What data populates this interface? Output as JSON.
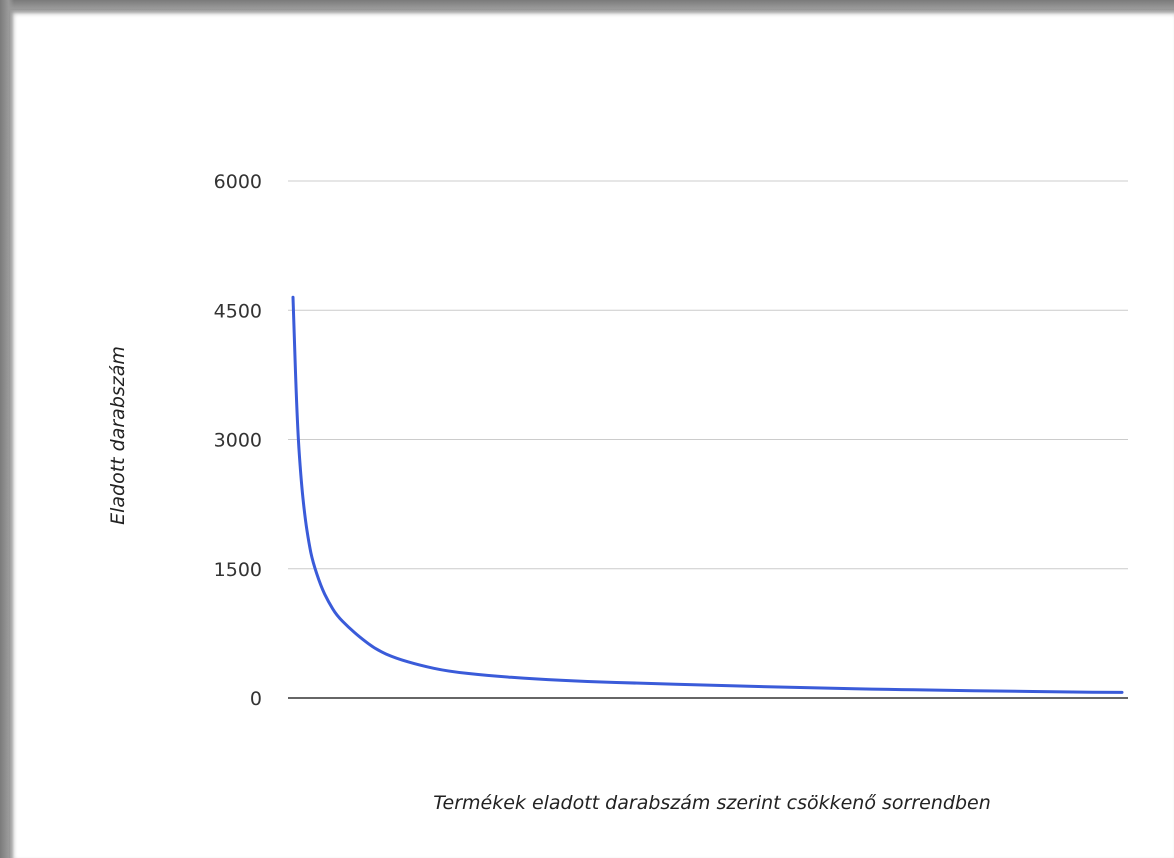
{
  "chart_data": {
    "type": "line",
    "title": "",
    "xlabel": "Termékek eladott darabszám szerint csökkenő sorrendben",
    "ylabel": "Eladott darabszám",
    "ylim": [
      0,
      6000
    ],
    "yticks": [
      "0",
      "1500",
      "3000",
      "4500",
      "6000"
    ],
    "grid": true,
    "legend": "none",
    "x_ticks_shown": false,
    "series": [
      {
        "color": "#3a5bd9",
        "x": [
          1,
          2,
          3,
          4,
          5,
          6,
          8,
          10,
          12,
          15,
          18,
          22,
          27,
          33,
          40,
          50,
          62,
          75,
          90,
          105,
          120,
          135,
          150,
          165,
          180,
          195,
          210
        ],
        "y": [
          4650,
          3250,
          2550,
          2100,
          1800,
          1580,
          1300,
          1110,
          960,
          820,
          700,
          560,
          460,
          380,
          310,
          260,
          220,
          190,
          170,
          150,
          130,
          115,
          100,
          90,
          80,
          70,
          65
        ]
      }
    ]
  }
}
